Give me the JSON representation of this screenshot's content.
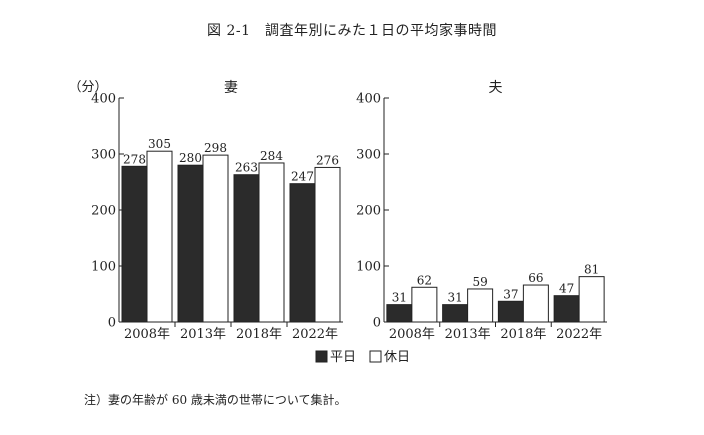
{
  "figure": {
    "title": "図 2-1　調査年別にみた１日の平均家事時間",
    "unit_label": "（分）",
    "note": "注）妻の年齢が 60 歳未満の世帯について集計。"
  },
  "colors": {
    "weekday": "#2b2b2b",
    "holiday": "#ffffff",
    "outline": "#222222"
  },
  "chart_data": [
    {
      "type": "bar",
      "title": "妻",
      "categories": [
        "2008年",
        "2013年",
        "2018年",
        "2022年"
      ],
      "ylim": [
        0,
        400
      ],
      "yticks": [
        0,
        100,
        200,
        300,
        400
      ],
      "series": [
        {
          "name": "平日",
          "values": [
            278,
            280,
            263,
            247
          ]
        },
        {
          "name": "休日",
          "values": [
            305,
            298,
            284,
            276
          ]
        }
      ],
      "legend": "bottom-center",
      "grid": false
    },
    {
      "type": "bar",
      "title": "夫",
      "categories": [
        "2008年",
        "2013年",
        "2018年",
        "2022年"
      ],
      "ylim": [
        0,
        400
      ],
      "yticks": [
        0,
        100,
        200,
        300,
        400
      ],
      "series": [
        {
          "name": "平日",
          "values": [
            31,
            31,
            37,
            47
          ]
        },
        {
          "name": "休日",
          "values": [
            62,
            59,
            66,
            81
          ]
        }
      ],
      "legend": "bottom-center",
      "grid": false
    }
  ]
}
